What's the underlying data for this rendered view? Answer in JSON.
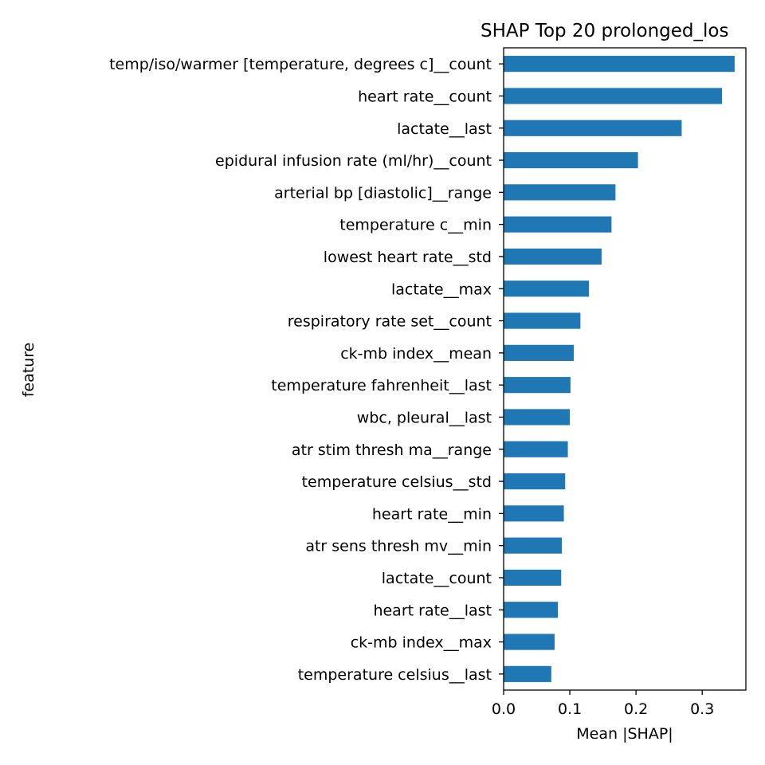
{
  "chart_data": {
    "type": "bar",
    "orientation": "horizontal",
    "title": "SHAP Top 20 prolonged_los",
    "xlabel": "Mean |SHAP|",
    "ylabel": "feature",
    "xlim": [
      0.0,
      0.366
    ],
    "xticks": [
      "0.0",
      "0.1",
      "0.2",
      "0.3"
    ],
    "grid": false,
    "legend": "none",
    "bar_color": "#1f77b4",
    "categories": [
      "temp/iso/warmer [temperature, degrees c]__count",
      "heart rate__count",
      "lactate__last",
      "epidural infusion rate (ml/hr)__count",
      "arterial bp [diastolic]__range",
      "temperature c__min",
      "lowest heart rate__std",
      "lactate__max",
      "respiratory rate set__count",
      "ck-mb index__mean",
      "temperature fahrenheit__last",
      "wbc, pleural__last",
      "atr stim thresh ma__range",
      "temperature celsius__std",
      "heart rate__min",
      "atr sens thresh mv__min",
      "lactate__count",
      "heart rate__last",
      "ck-mb index__max",
      "temperature celsius__last"
    ],
    "values": [
      0.349,
      0.33,
      0.269,
      0.203,
      0.169,
      0.163,
      0.148,
      0.129,
      0.116,
      0.106,
      0.101,
      0.1,
      0.097,
      0.093,
      0.091,
      0.088,
      0.087,
      0.082,
      0.077,
      0.072
    ]
  }
}
